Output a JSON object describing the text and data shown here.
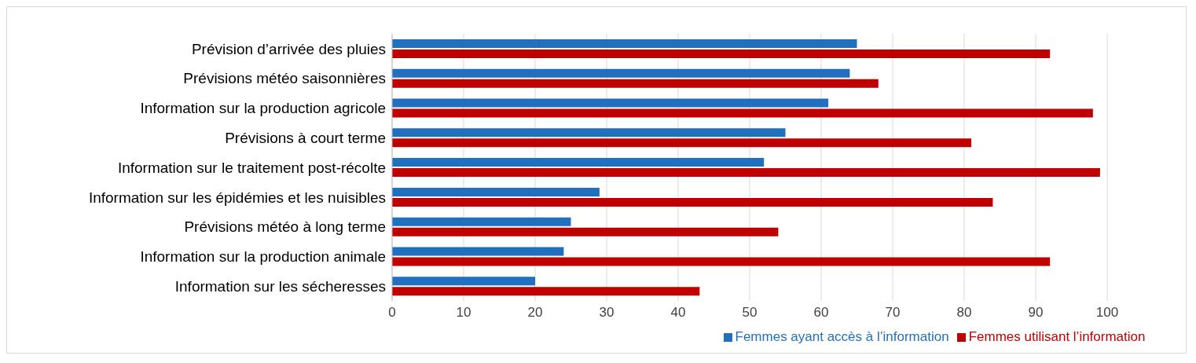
{
  "chart_data": {
    "type": "bar",
    "orientation": "horizontal",
    "categories": [
      "Prévision d’arrivée des pluies",
      "Prévisions météo  saisonnières",
      "Information sur la production agricole",
      "Prévisions à court terme",
      "Information sur le traitement post-récolte",
      "Information sur les épidémies et les nuisibles",
      "Prévisions météo à long terme",
      "Information sur la production animale",
      "Information sur les sécheresses"
    ],
    "series": [
      {
        "name": "Femmes ayant accès à l’information",
        "color": "#2170c0",
        "values": [
          65,
          64,
          61,
          55,
          52,
          29,
          25,
          24,
          20
        ]
      },
      {
        "name": "Femmes utilisant l’information",
        "color": "#c00000",
        "values": [
          92,
          68,
          98,
          81,
          99,
          84,
          54,
          92,
          43
        ]
      }
    ],
    "xlim": [
      0,
      100
    ],
    "xticks": [
      0,
      10,
      20,
      30,
      40,
      50,
      60,
      70,
      80,
      90,
      100
    ],
    "grid": "x",
    "legend": "bottom"
  }
}
